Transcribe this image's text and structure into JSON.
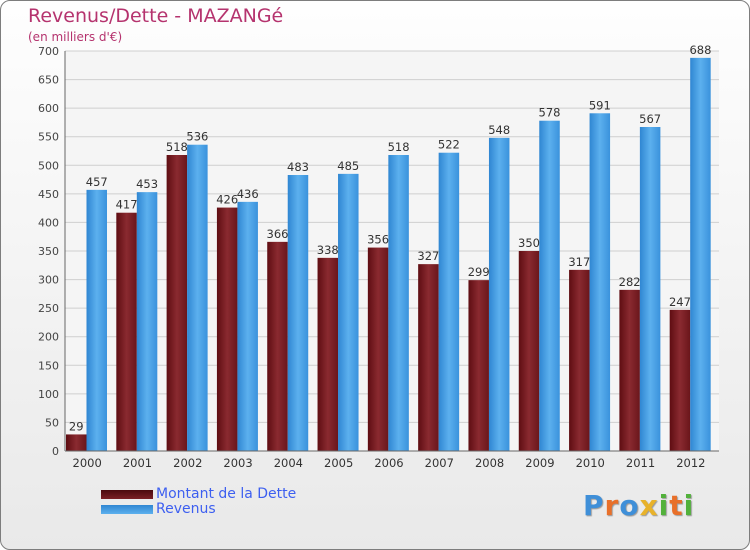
{
  "title": "Revenus/Dette - MAZANGé",
  "subtitle": "(en milliers d'€)",
  "legend": {
    "debt": "Montant de la Dette",
    "revenue": "Revenus"
  },
  "logo": {
    "letters": [
      "P",
      "r",
      "o",
      "x",
      "i",
      "t",
      "i"
    ],
    "colors": [
      "#3f8fd8",
      "#e8702a",
      "#3f8fd8",
      "#e8b22a",
      "#52b13b",
      "#e8702a",
      "#52b13b"
    ]
  },
  "colors": {
    "debt": "#701a1f",
    "revenue": "#3d95dd"
  },
  "chart_data": {
    "type": "bar",
    "categories": [
      "2000",
      "2001",
      "2002",
      "2003",
      "2004",
      "2005",
      "2006",
      "2007",
      "2008",
      "2009",
      "2010",
      "2011",
      "2012"
    ],
    "series": [
      {
        "name": "Montant de la Dette",
        "values": [
          29,
          417,
          518,
          426,
          366,
          338,
          356,
          327,
          299,
          350,
          317,
          282,
          247
        ]
      },
      {
        "name": "Revenus",
        "values": [
          457,
          453,
          536,
          436,
          483,
          485,
          518,
          522,
          548,
          578,
          591,
          567,
          688
        ]
      }
    ],
    "yticks": [
      "0",
      "50",
      "100",
      "150",
      "200",
      "250",
      "300",
      "350",
      "400",
      "450",
      "500",
      "550",
      "600",
      "650",
      "700"
    ],
    "ylim": [
      0,
      700
    ],
    "grid": true,
    "legend_position": "bottom-left"
  }
}
